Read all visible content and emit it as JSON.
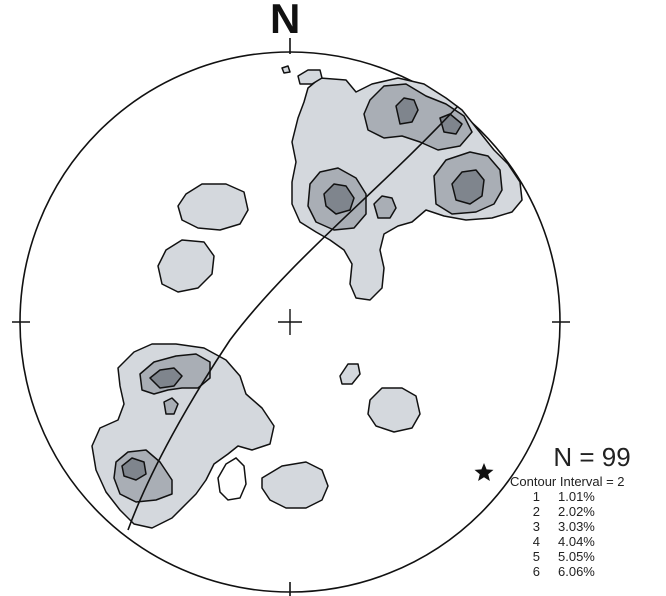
{
  "diagram": {
    "north_label": "N",
    "n_count": "N = 99",
    "contour_interval": "Contour Interval = 2",
    "contour_levels": [
      {
        "level": "1",
        "percent": "1.01%"
      },
      {
        "level": "2",
        "percent": "2.02%"
      },
      {
        "level": "3",
        "percent": "3.03%"
      },
      {
        "level": "4",
        "percent": "4.04%"
      },
      {
        "level": "5",
        "percent": "5.05%"
      },
      {
        "level": "6",
        "percent": "6.06%"
      }
    ],
    "colors": {
      "outline": "#111111",
      "fill_level_1": "#d4d8dd",
      "fill_level_2": "#a9aeb5",
      "fill_level_3": "#7f858d"
    }
  }
}
